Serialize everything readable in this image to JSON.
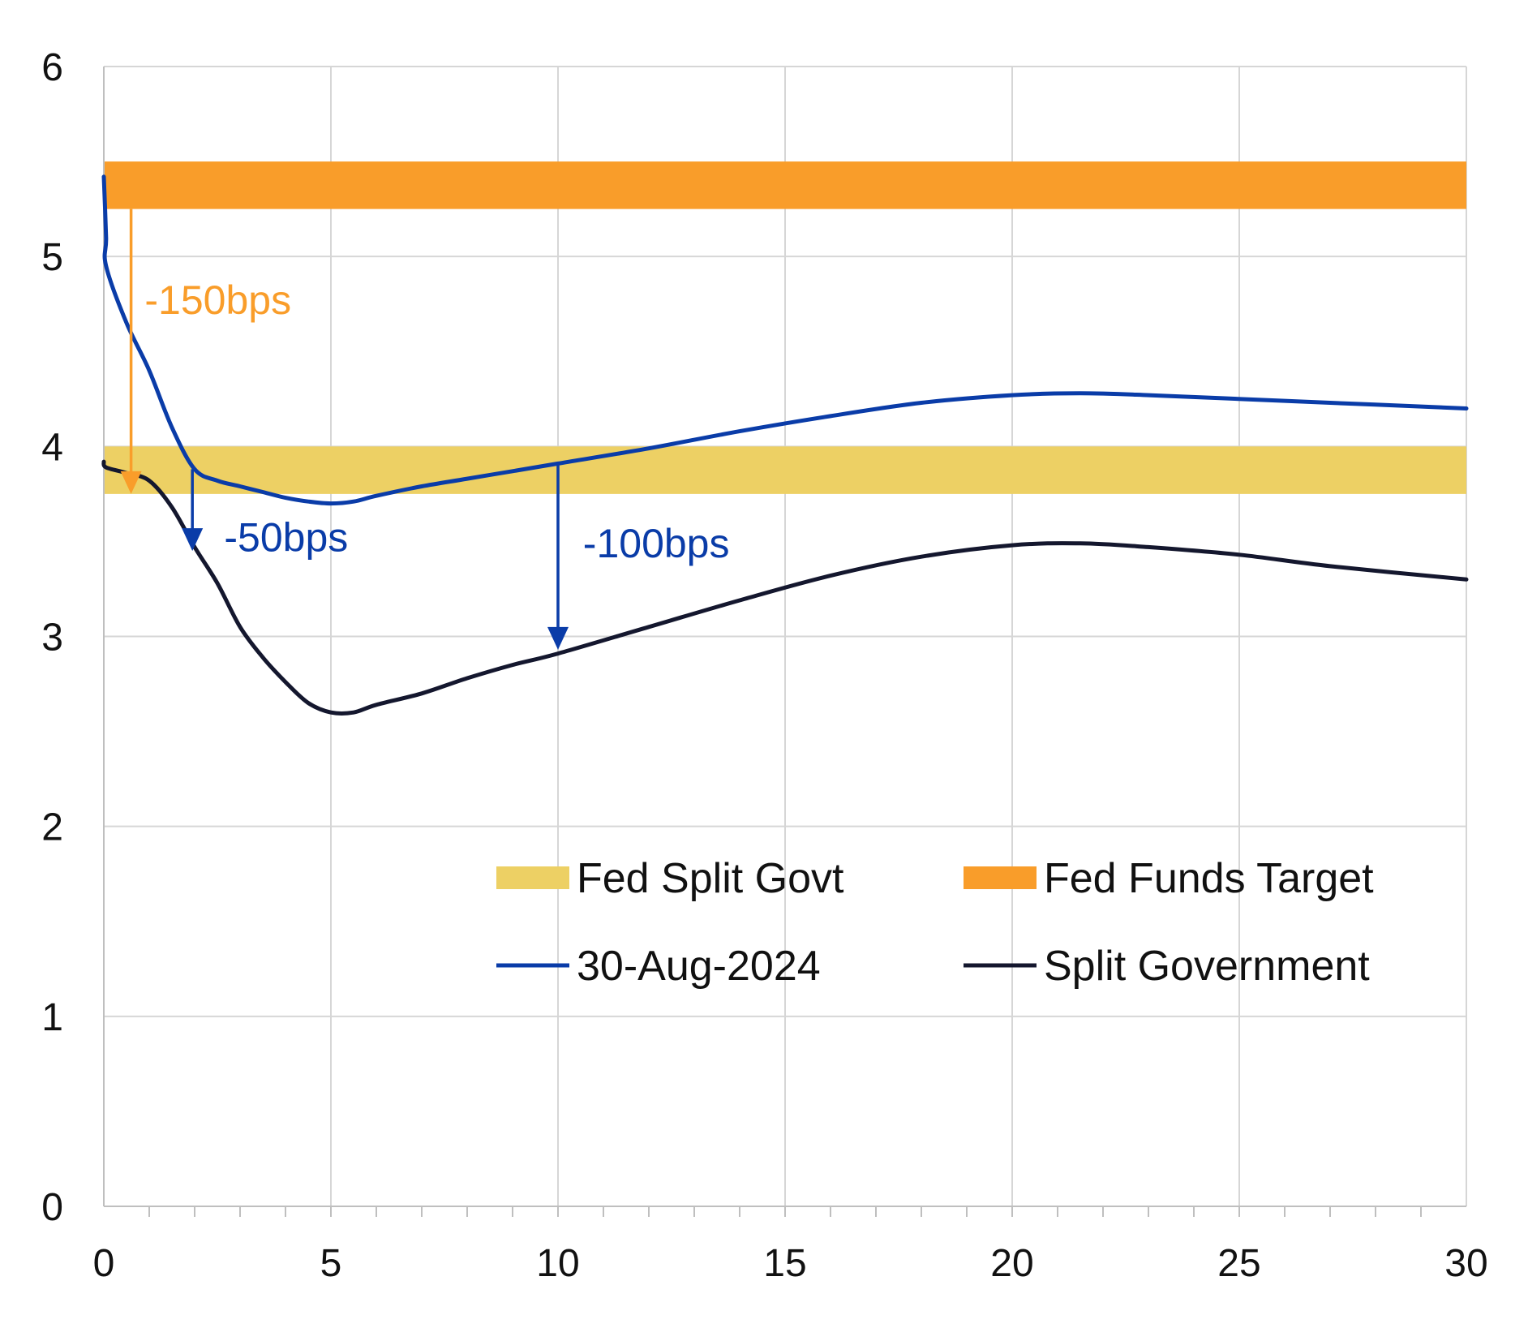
{
  "chart_data": {
    "type": "line",
    "xlim": [
      0,
      30
    ],
    "ylim": [
      0,
      6
    ],
    "x_ticks": [
      "0",
      "5",
      "10",
      "15",
      "20",
      "25",
      "30"
    ],
    "y_ticks": [
      "0",
      "1",
      "2",
      "3",
      "4",
      "5",
      "6"
    ],
    "grid": true,
    "legend_placement": "lower-right",
    "bands": [
      {
        "name": "Fed Split Govt",
        "ymin": 3.75,
        "ymax": 4.0,
        "color": "#EDD064"
      },
      {
        "name": "Fed Funds Target",
        "ymin": 5.25,
        "ymax": 5.5,
        "color": "#F99D2A"
      }
    ],
    "series": [
      {
        "name": "30-Aug-2024",
        "color": "#0A3CA8",
        "points": [
          [
            0,
            5.42
          ],
          [
            0.05,
            5.1
          ],
          [
            0.05,
            4.95
          ],
          [
            0.5,
            4.65
          ],
          [
            1,
            4.4
          ],
          [
            1.5,
            4.1
          ],
          [
            2,
            3.88
          ],
          [
            2.5,
            3.82
          ],
          [
            3,
            3.79
          ],
          [
            3.5,
            3.76
          ],
          [
            4,
            3.73
          ],
          [
            4.5,
            3.71
          ],
          [
            5,
            3.7
          ],
          [
            5.5,
            3.71
          ],
          [
            6,
            3.74
          ],
          [
            7,
            3.79
          ],
          [
            8,
            3.83
          ],
          [
            9,
            3.87
          ],
          [
            10,
            3.91
          ],
          [
            12,
            3.99
          ],
          [
            14,
            4.08
          ],
          [
            16,
            4.16
          ],
          [
            18,
            4.23
          ],
          [
            20,
            4.27
          ],
          [
            21.5,
            4.28
          ],
          [
            23,
            4.27
          ],
          [
            26,
            4.24
          ],
          [
            28,
            4.22
          ],
          [
            30,
            4.2
          ]
        ]
      },
      {
        "name": "Split Government",
        "color": "#14172E",
        "points": [
          [
            0,
            3.92
          ],
          [
            0.05,
            3.89
          ],
          [
            0.5,
            3.86
          ],
          [
            1,
            3.82
          ],
          [
            1.5,
            3.68
          ],
          [
            2,
            3.47
          ],
          [
            2.5,
            3.28
          ],
          [
            3,
            3.05
          ],
          [
            3.5,
            2.89
          ],
          [
            4,
            2.76
          ],
          [
            4.5,
            2.65
          ],
          [
            5,
            2.6
          ],
          [
            5.5,
            2.6
          ],
          [
            6,
            2.64
          ],
          [
            7,
            2.7
          ],
          [
            8,
            2.78
          ],
          [
            9,
            2.85
          ],
          [
            10,
            2.91
          ],
          [
            12,
            3.05
          ],
          [
            14,
            3.19
          ],
          [
            16,
            3.32
          ],
          [
            18,
            3.42
          ],
          [
            20,
            3.48
          ],
          [
            21.5,
            3.49
          ],
          [
            23,
            3.47
          ],
          [
            25,
            3.43
          ],
          [
            27,
            3.37
          ],
          [
            30,
            3.3
          ]
        ]
      }
    ],
    "annotations": [
      {
        "text": "-150bps",
        "color": "#F99D2A",
        "arrow_x": 0.6,
        "arrow_from": 5.25,
        "arrow_to": 3.75,
        "label_x": 0.9,
        "label_y": 4.77
      },
      {
        "text": "-50bps",
        "color": "#0A3CA8",
        "arrow_x": 1.95,
        "arrow_from": 3.88,
        "arrow_to": 3.45,
        "label_x": 2.65,
        "label_y": 3.52
      },
      {
        "text": "-100bps",
        "color": "#0A3CA8",
        "arrow_x": 10,
        "arrow_from": 3.91,
        "arrow_to": 2.93,
        "label_x": 10.55,
        "label_y": 3.49
      }
    ]
  }
}
